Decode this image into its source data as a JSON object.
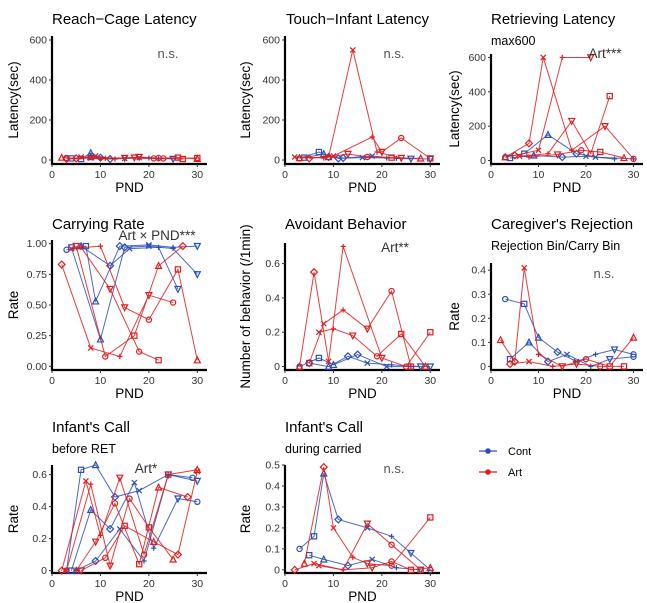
{
  "colors": {
    "Cont": "#2a4fb8",
    "Art": "#e21b1b"
  },
  "legend": {
    "placement": "right",
    "items": [
      "Cont",
      "Art"
    ]
  },
  "chart_data": [
    {
      "type": "line",
      "title": "Reach−Cage Latency",
      "subtitle": "",
      "xlabel": "PND",
      "ylabel": "Latency(sec)",
      "xlim": [
        0,
        32
      ],
      "ylim": [
        -20,
        620
      ],
      "xticks": [
        0,
        10,
        20,
        30
      ],
      "yticks": [
        0,
        200,
        400,
        600
      ],
      "annotation": "n.s.",
      "series": [
        {
          "group": "Cont",
          "x": [
            3,
            6,
            8,
            10,
            15,
            20,
            25
          ],
          "y": [
            10,
            5,
            35,
            12,
            8,
            10,
            5
          ]
        },
        {
          "group": "Cont",
          "x": [
            4,
            8,
            12,
            18,
            22
          ],
          "y": [
            8,
            15,
            5,
            12,
            6
          ]
        },
        {
          "group": "Art",
          "x": [
            2,
            5,
            9,
            13,
            18,
            23,
            30
          ],
          "y": [
            12,
            8,
            20,
            5,
            15,
            8,
            10
          ]
        },
        {
          "group": "Art",
          "x": [
            3,
            8,
            11,
            17,
            22,
            27
          ],
          "y": [
            5,
            10,
            8,
            12,
            10,
            5
          ]
        },
        {
          "group": "Art",
          "x": [
            6,
            10,
            15,
            21,
            26,
            30
          ],
          "y": [
            15,
            5,
            10,
            8,
            12,
            6
          ]
        }
      ]
    },
    {
      "type": "line",
      "title": "Touch−Infant Latency",
      "subtitle": "",
      "xlabel": "PND",
      "ylabel": "Latency(sec)",
      "xlim": [
        0,
        32
      ],
      "ylim": [
        -20,
        620
      ],
      "xticks": [
        0,
        10,
        20,
        30
      ],
      "yticks": [
        0,
        200,
        400,
        600
      ],
      "annotation": "n.s.",
      "series": [
        {
          "group": "Cont",
          "x": [
            3,
            7,
            9,
            12,
            18,
            23,
            30
          ],
          "y": [
            8,
            40,
            15,
            10,
            20,
            8,
            5
          ]
        },
        {
          "group": "Cont",
          "x": [
            4,
            8,
            11,
            16,
            21,
            26
          ],
          "y": [
            12,
            30,
            8,
            12,
            10,
            6
          ]
        },
        {
          "group": "Art",
          "x": [
            3,
            9,
            14,
            19,
            24
          ],
          "y": [
            10,
            15,
            550,
            40,
            10
          ]
        },
        {
          "group": "Art",
          "x": [
            5,
            10,
            18,
            20,
            24,
            30
          ],
          "y": [
            8,
            20,
            115,
            40,
            110,
            8
          ]
        },
        {
          "group": "Art",
          "x": [
            2,
            8,
            13,
            17,
            22,
            28
          ],
          "y": [
            15,
            10,
            30,
            15,
            12,
            8
          ]
        }
      ]
    },
    {
      "type": "line",
      "title": "Retrieving Latency",
      "subtitle": "max600",
      "xlabel": "PND",
      "ylabel": "Latency(sec)",
      "xlim": [
        0,
        32
      ],
      "ylim": [
        -20,
        620
      ],
      "xticks": [
        0,
        10,
        20,
        30
      ],
      "yticks": [
        0,
        200,
        400,
        600
      ],
      "annotation": "Art***",
      "series": [
        {
          "group": "Cont",
          "x": [
            3,
            7,
            12,
            18,
            22,
            30
          ],
          "y": [
            20,
            40,
            150,
            40,
            20,
            10
          ]
        },
        {
          "group": "Cont",
          "x": [
            4,
            9,
            15,
            20,
            26
          ],
          "y": [
            15,
            30,
            20,
            25,
            10
          ]
        },
        {
          "group": "Art",
          "x": [
            3,
            8,
            11,
            17,
            24,
            30
          ],
          "y": [
            20,
            100,
            600,
            60,
            200,
            10
          ]
        },
        {
          "group": "Art",
          "x": [
            5,
            10,
            15,
            21
          ],
          "y": [
            30,
            60,
            600,
            600
          ]
        },
        {
          "group": "Art",
          "x": [
            6,
            12,
            17,
            21,
            25
          ],
          "y": [
            25,
            40,
            230,
            40,
            375
          ]
        },
        {
          "group": "Art",
          "x": [
            8,
            14,
            19,
            23,
            28
          ],
          "y": [
            20,
            35,
            60,
            50,
            15
          ]
        }
      ]
    },
    {
      "type": "line",
      "title": "Carrying Rate",
      "subtitle": "",
      "xlabel": "PND",
      "ylabel": "Rate",
      "xlim": [
        0,
        32
      ],
      "ylim": [
        -0.03,
        1.03
      ],
      "xticks": [
        0,
        10,
        20,
        30
      ],
      "yticks": [
        0.0,
        0.25,
        0.5,
        0.75,
        1.0
      ],
      "yticklabels": [
        "0.00",
        "0.25",
        "0.50",
        "0.75",
        "1.00"
      ],
      "annotation": "Art × PND***",
      "series": [
        {
          "group": "Cont",
          "x": [
            3,
            7,
            9,
            14,
            20,
            25,
            30
          ],
          "y": [
            0.95,
            0.98,
            0.53,
            0.98,
            0.99,
            0.97,
            0.98
          ]
        },
        {
          "group": "Cont",
          "x": [
            4,
            10,
            15,
            20,
            25,
            30
          ],
          "y": [
            0.97,
            0.22,
            0.97,
            0.98,
            0.96,
            0.75
          ]
        },
        {
          "group": "Cont",
          "x": [
            6,
            12,
            16,
            22,
            26
          ],
          "y": [
            0.98,
            0.82,
            0.96,
            0.97,
            0.63
          ]
        },
        {
          "group": "Art",
          "x": [
            2,
            8,
            14,
            20,
            25
          ],
          "y": [
            0.83,
            0.15,
            0.08,
            0.58,
            0.52
          ]
        },
        {
          "group": "Art",
          "x": [
            4,
            10,
            15,
            20,
            26,
            30
          ],
          "y": [
            0.96,
            0.98,
            0.48,
            0.38,
            0.79,
            0.05
          ]
        },
        {
          "group": "Art",
          "x": [
            6,
            12,
            18,
            22
          ],
          "y": [
            0.97,
            0.63,
            0.12,
            0.05
          ]
        },
        {
          "group": "Art",
          "x": [
            5,
            11,
            17,
            22,
            27
          ],
          "y": [
            0.98,
            0.08,
            0.25,
            0.82,
            0.98
          ]
        }
      ]
    },
    {
      "type": "line",
      "title": "Avoidant Behavior",
      "subtitle": "",
      "xlabel": "PND",
      "ylabel": "Number of behavior (/1min)",
      "xlim": [
        0,
        32
      ],
      "ylim": [
        -0.02,
        0.72
      ],
      "xticks": [
        0,
        10,
        20,
        30
      ],
      "yticks": [
        0.0,
        0.2,
        0.4,
        0.6
      ],
      "annotation": "Art**",
      "series": [
        {
          "group": "Cont",
          "x": [
            3,
            7,
            10,
            15,
            21,
            26,
            30
          ],
          "y": [
            0.0,
            0.05,
            0.01,
            0.07,
            0.0,
            0.0,
            0.0
          ]
        },
        {
          "group": "Cont",
          "x": [
            5,
            9,
            13,
            17,
            22,
            28
          ],
          "y": [
            0.02,
            0.0,
            0.06,
            0.02,
            0.01,
            0.0
          ]
        },
        {
          "group": "Art",
          "x": [
            3,
            6,
            9,
            12,
            20,
            25,
            30
          ],
          "y": [
            0.0,
            0.55,
            0.03,
            0.7,
            0.05,
            0.0,
            0.2
          ]
        },
        {
          "group": "Art",
          "x": [
            5,
            8,
            12,
            17,
            22,
            26
          ],
          "y": [
            0.02,
            0.25,
            0.33,
            0.22,
            0.44,
            0.0
          ]
        },
        {
          "group": "Art",
          "x": [
            7,
            10,
            14,
            19,
            24,
            29
          ],
          "y": [
            0.2,
            0.22,
            0.18,
            0.06,
            0.19,
            0.0
          ]
        }
      ]
    },
    {
      "type": "line",
      "title": "Caregiver's Rejection",
      "subtitle": "Rejection Bin/Carry Bin",
      "xlabel": "PND",
      "ylabel": "Rate",
      "xlim": [
        0,
        32
      ],
      "ylim": [
        -0.015,
        0.43
      ],
      "xticks": [
        0,
        10,
        20,
        30
      ],
      "yticks": [
        0.0,
        0.1,
        0.2,
        0.3,
        0.4
      ],
      "annotation": "n.s.",
      "series": [
        {
          "group": "Cont",
          "x": [
            3,
            7,
            10,
            14,
            18,
            22,
            26,
            30
          ],
          "y": [
            0.28,
            0.26,
            0.12,
            0.06,
            0.02,
            0.05,
            0.07,
            0.05
          ]
        },
        {
          "group": "Cont",
          "x": [
            4,
            8,
            12,
            16,
            21,
            25,
            30
          ],
          "y": [
            0.03,
            0.1,
            0.02,
            0.05,
            0.0,
            0.03,
            0.04
          ]
        },
        {
          "group": "Art",
          "x": [
            2,
            5,
            7,
            10,
            15,
            20,
            25,
            30
          ],
          "y": [
            0.11,
            0.02,
            0.41,
            0.05,
            0.0,
            0.03,
            0.0,
            0.12
          ]
        },
        {
          "group": "Art",
          "x": [
            4,
            8,
            13,
            18,
            23,
            28
          ],
          "y": [
            0.01,
            0.02,
            0.0,
            0.01,
            0.0,
            0.0
          ]
        }
      ]
    },
    {
      "type": "line",
      "title": "Infant's Call",
      "subtitle": "before RET",
      "xlabel": "PND",
      "ylabel": "Rate",
      "xlim": [
        0,
        32
      ],
      "ylim": [
        -0.015,
        0.66
      ],
      "xticks": [
        0,
        10,
        20,
        30
      ],
      "yticks": [
        0.0,
        0.2,
        0.4,
        0.6
      ],
      "annotation": "Art*",
      "series": [
        {
          "group": "Cont",
          "x": [
            3,
            6,
            9,
            13,
            18,
            24,
            30
          ],
          "y": [
            0.0,
            0.63,
            0.66,
            0.46,
            0.5,
            0.6,
            0.56
          ]
        },
        {
          "group": "Cont",
          "x": [
            4,
            8,
            12,
            17,
            21,
            26,
            30
          ],
          "y": [
            0.0,
            0.38,
            0.26,
            0.55,
            0.14,
            0.45,
            0.43
          ]
        },
        {
          "group": "Cont",
          "x": [
            5,
            9,
            14,
            19,
            24,
            29
          ],
          "y": [
            0.0,
            0.06,
            0.26,
            0.06,
            0.6,
            0.58
          ]
        },
        {
          "group": "Art",
          "x": [
            2,
            7,
            10,
            14,
            19,
            24,
            30
          ],
          "y": [
            0.0,
            0.56,
            0.22,
            0.58,
            0.1,
            0.6,
            0.63
          ]
        },
        {
          "group": "Art",
          "x": [
            3,
            8,
            12,
            16,
            20,
            25
          ],
          "y": [
            0.0,
            0.54,
            0.03,
            0.45,
            0.27,
            0.07
          ]
        },
        {
          "group": "Art",
          "x": [
            5,
            9,
            13,
            18,
            22,
            28
          ],
          "y": [
            0.0,
            0.18,
            0.42,
            0.04,
            0.52,
            0.46
          ]
        },
        {
          "group": "Art",
          "x": [
            6,
            11,
            15,
            21,
            26,
            30
          ],
          "y": [
            0.0,
            0.08,
            0.28,
            0.18,
            0.1,
            0.62
          ]
        }
      ]
    },
    {
      "type": "line",
      "title": "Infant's Call",
      "subtitle": "during carried",
      "xlabel": "PND",
      "ylabel": "Rate",
      "xlim": [
        0,
        32
      ],
      "ylim": [
        -0.015,
        0.5
      ],
      "xticks": [
        0,
        10,
        20,
        30
      ],
      "yticks": [
        0.0,
        0.1,
        0.2,
        0.3,
        0.4,
        0.5
      ],
      "annotation": "n.s.",
      "series": [
        {
          "group": "Cont",
          "x": [
            3,
            6,
            8,
            11,
            17,
            22,
            26,
            30
          ],
          "y": [
            0.1,
            0.16,
            0.46,
            0.24,
            0.2,
            0.16,
            0.08,
            0.0
          ]
        },
        {
          "group": "Cont",
          "x": [
            5,
            8,
            13,
            18,
            23,
            28
          ],
          "y": [
            0.07,
            0.05,
            0.02,
            0.05,
            0.01,
            0.0
          ]
        },
        {
          "group": "Art",
          "x": [
            4,
            8,
            10,
            14,
            17,
            22,
            30
          ],
          "y": [
            0.03,
            0.49,
            0.2,
            0.06,
            0.03,
            0.02,
            0.25
          ]
        },
        {
          "group": "Art",
          "x": [
            2,
            6,
            12,
            18,
            22,
            26,
            30
          ],
          "y": [
            0.0,
            0.03,
            0.0,
            0.01,
            0.04,
            0.0,
            0.01
          ]
        },
        {
          "group": "Art",
          "x": [
            7,
            12,
            17,
            22,
            28
          ],
          "y": [
            0.02,
            0.0,
            0.22,
            0.12,
            0.0
          ]
        }
      ]
    }
  ]
}
